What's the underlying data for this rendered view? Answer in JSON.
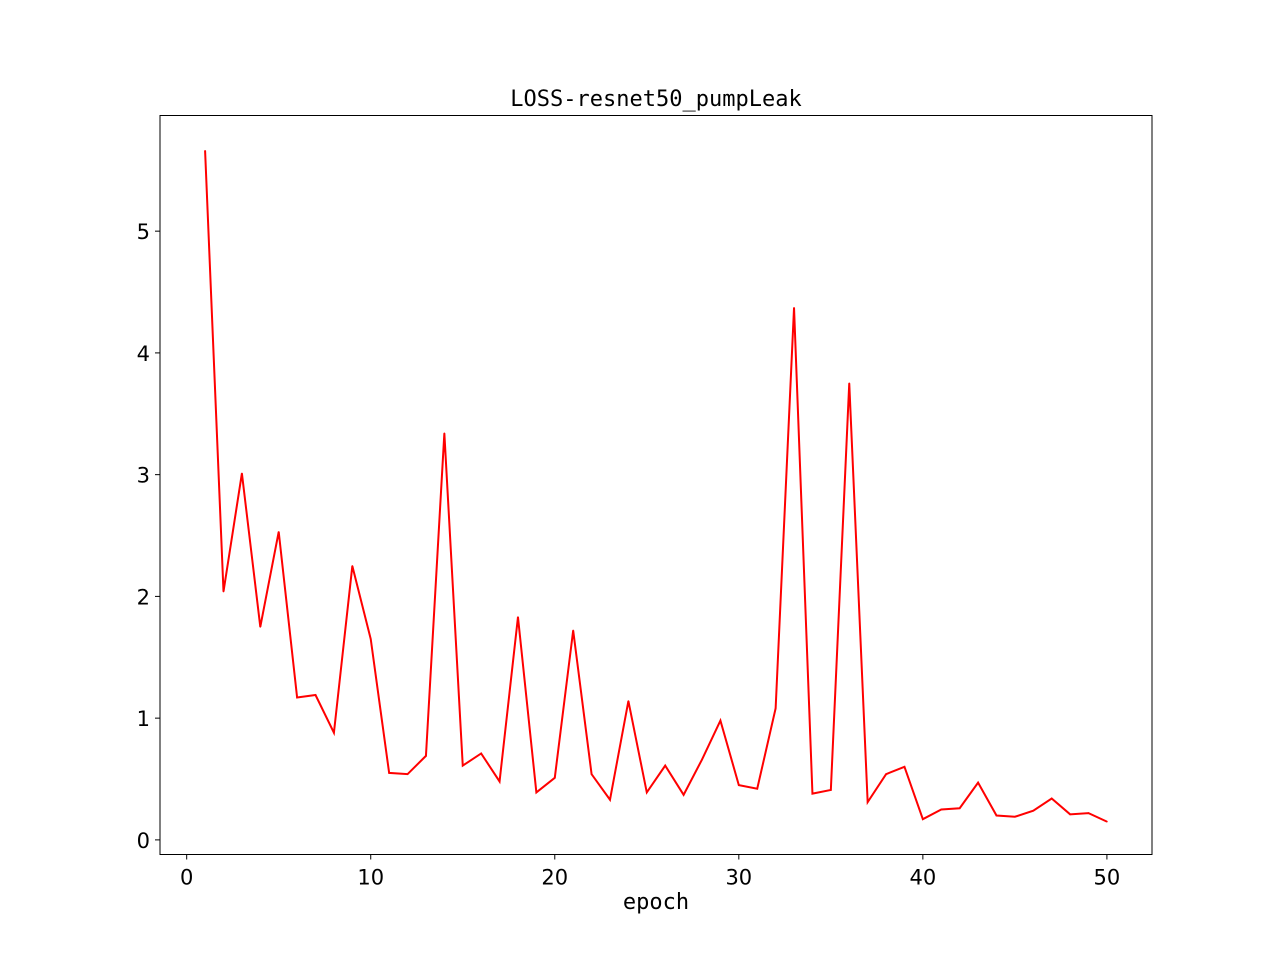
{
  "chart_data": {
    "type": "line",
    "title": "LOSS-resnet50_pumpLeak",
    "xlabel": "epoch",
    "ylabel": "",
    "xlim": [
      -1.45,
      52.45
    ],
    "ylim": [
      -0.12,
      5.95
    ],
    "xticks": [
      0,
      10,
      20,
      30,
      40,
      50
    ],
    "yticks": [
      0,
      1,
      2,
      3,
      4,
      5
    ],
    "grid": false,
    "line_color": "#ff0000",
    "series": [
      {
        "x": [
          1,
          2,
          3,
          4,
          5,
          6,
          7,
          8,
          9,
          10,
          11,
          12,
          13,
          14,
          15,
          16,
          17,
          18,
          19,
          20,
          21,
          22,
          23,
          24,
          25,
          26,
          27,
          28,
          29,
          30,
          31,
          32,
          33,
          34,
          35,
          36,
          37,
          38,
          39,
          40,
          41,
          42,
          43,
          44,
          45,
          46,
          47,
          48,
          49,
          50
        ],
        "values": [
          5.66,
          2.04,
          3.01,
          1.75,
          2.53,
          1.17,
          1.19,
          0.88,
          2.25,
          1.65,
          0.55,
          0.54,
          0.69,
          3.34,
          0.61,
          0.71,
          0.48,
          1.83,
          0.39,
          0.51,
          1.72,
          0.54,
          0.33,
          1.14,
          0.39,
          0.61,
          0.37,
          0.66,
          0.98,
          0.45,
          0.42,
          1.08,
          4.37,
          0.38,
          0.41,
          3.75,
          0.31,
          0.54,
          0.6,
          0.17,
          0.25,
          0.26,
          0.47,
          0.2,
          0.19,
          0.24,
          0.34,
          0.21,
          0.22,
          0.15
        ]
      }
    ]
  }
}
